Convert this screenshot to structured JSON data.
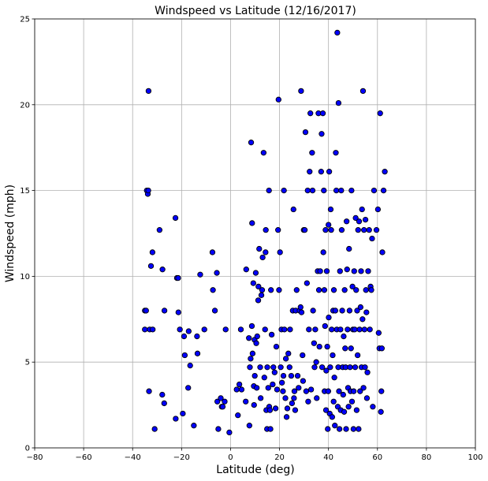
{
  "chart_data": {
    "type": "scatter",
    "title": "Windspeed vs Latitude (12/16/2017)",
    "xlabel": "Latitude (deg)",
    "ylabel": "Windspeed (mph)",
    "xlim": [
      -80,
      100
    ],
    "ylim": [
      0,
      25
    ],
    "xticks": [
      -80,
      -60,
      -40,
      -20,
      0,
      20,
      40,
      60,
      80,
      100
    ],
    "yticks": [
      0,
      5,
      10,
      15,
      20,
      25
    ],
    "xtick_labels": [
      "−80",
      "−60",
      "−40",
      "−20",
      "0",
      "20",
      "40",
      "60",
      "80",
      "100"
    ],
    "ytick_labels": [
      "0",
      "5",
      "10",
      "15",
      "20",
      "25"
    ],
    "grid": true,
    "marker_color": "#0000ff",
    "marker_edge_color": "#000000",
    "points": [
      [
        -33.5,
        20.8
      ],
      [
        -34.2,
        15.0
      ],
      [
        -33.8,
        14.8
      ],
      [
        -33.6,
        15.0
      ],
      [
        -35,
        8.0
      ],
      [
        -34.5,
        8.0
      ],
      [
        -35,
        6.9
      ],
      [
        -33,
        6.9
      ],
      [
        -31.8,
        6.9
      ],
      [
        -32.5,
        10.6
      ],
      [
        -31.9,
        11.4
      ],
      [
        -29,
        12.7
      ],
      [
        -27.8,
        10.4
      ],
      [
        -27,
        8.0
      ],
      [
        -33.3,
        3.3
      ],
      [
        -31,
        1.1
      ],
      [
        -27.9,
        3.1
      ],
      [
        -27.1,
        2.6
      ],
      [
        -22.5,
        13.4
      ],
      [
        -21.9,
        9.9
      ],
      [
        -21.4,
        9.9
      ],
      [
        -21.3,
        7.9
      ],
      [
        -20.7,
        6.9
      ],
      [
        -18.7,
        5.4
      ],
      [
        -19,
        6.5
      ],
      [
        -17.1,
        6.8
      ],
      [
        -17.3,
        3.5
      ],
      [
        -16.5,
        4.8
      ],
      [
        -19.5,
        2.0
      ],
      [
        -22.4,
        1.7
      ],
      [
        -15,
        1.3
      ],
      [
        -13.7,
        6.5
      ],
      [
        -13.5,
        5.5
      ],
      [
        -12.4,
        10.1
      ],
      [
        -10.7,
        6.9
      ],
      [
        -7.4,
        11.4
      ],
      [
        -7.2,
        9.2
      ],
      [
        -6.4,
        8.0
      ],
      [
        -5.6,
        10.2
      ],
      [
        -5.4,
        2.7
      ],
      [
        -5,
        1.1
      ],
      [
        -4,
        2.9
      ],
      [
        -3.6,
        2.4
      ],
      [
        -3.2,
        2.4
      ],
      [
        -2.4,
        2.7
      ],
      [
        -2,
        6.9
      ],
      [
        -0.5,
        0.9
      ],
      [
        2.5,
        3.4
      ],
      [
        3,
        1.9
      ],
      [
        3.6,
        3.7
      ],
      [
        4.5,
        3.4
      ],
      [
        4.2,
        6.9
      ],
      [
        6.4,
        10.4
      ],
      [
        6.2,
        2.7
      ],
      [
        7.5,
        6.4
      ],
      [
        7.7,
        1.3
      ],
      [
        7.9,
        4.7
      ],
      [
        8.2,
        5.2
      ],
      [
        8.4,
        17.8
      ],
      [
        8.8,
        13.1
      ],
      [
        8.7,
        7.1
      ],
      [
        9.0,
        5.5
      ],
      [
        9.3,
        9.6
      ],
      [
        9.5,
        3.6
      ],
      [
        9.6,
        2.5
      ],
      [
        9.8,
        6.3
      ],
      [
        9.9,
        4.2
      ],
      [
        10.3,
        10.2
      ],
      [
        10.5,
        6.1
      ],
      [
        10.7,
        3.5
      ],
      [
        10.9,
        6.5
      ],
      [
        11.3,
        8.6
      ],
      [
        11.4,
        9.4
      ],
      [
        11.7,
        11.6
      ],
      [
        12.1,
        4.7
      ],
      [
        12.3,
        2.9
      ],
      [
        12.6,
        8.9
      ],
      [
        12.9,
        9.2
      ],
      [
        13.1,
        11.1
      ],
      [
        13.5,
        17.2
      ],
      [
        13.8,
        4.1
      ],
      [
        14.1,
        6.9
      ],
      [
        14.3,
        11.4
      ],
      [
        14.4,
        12.7
      ],
      [
        14.6,
        2.2
      ],
      [
        14.9,
        1.1
      ],
      [
        15.0,
        4.7
      ],
      [
        15.4,
        3.5
      ],
      [
        15.7,
        15.0
      ],
      [
        15.8,
        2.4
      ],
      [
        16.1,
        2.2
      ],
      [
        16.3,
        1.1
      ],
      [
        16.5,
        9.2
      ],
      [
        16.8,
        6.6
      ],
      [
        17.2,
        3.7
      ],
      [
        17.5,
        4.7
      ],
      [
        18.0,
        4.4
      ],
      [
        18.4,
        2.3
      ],
      [
        18.7,
        5.9
      ],
      [
        19.0,
        3.4
      ],
      [
        19.4,
        12.7
      ],
      [
        19.6,
        20.3
      ],
      [
        19.8,
        9.2
      ],
      [
        20.2,
        11.4
      ],
      [
        20.5,
        4.7
      ],
      [
        20.8,
        6.9
      ],
      [
        21.0,
        3.8
      ],
      [
        21.4,
        3.3
      ],
      [
        21.6,
        4.2
      ],
      [
        21.8,
        15.0
      ],
      [
        22.0,
        6.9
      ],
      [
        22.4,
        2.9
      ],
      [
        22.6,
        5.2
      ],
      [
        22.9,
        1.8
      ],
      [
        23.2,
        2.3
      ],
      [
        23.6,
        5.5
      ],
      [
        24.1,
        4.7
      ],
      [
        24.3,
        6.9
      ],
      [
        24.8,
        4.2
      ],
      [
        25.1,
        2.6
      ],
      [
        25.4,
        8.0
      ],
      [
        25.7,
        13.9
      ],
      [
        25.9,
        2.9
      ],
      [
        26.1,
        3.3
      ],
      [
        26.4,
        2.2
      ],
      [
        26.6,
        8.0
      ],
      [
        27.0,
        9.2
      ],
      [
        27.4,
        4.2
      ],
      [
        27.8,
        3.5
      ],
      [
        28.2,
        8.0
      ],
      [
        28.6,
        8.2
      ],
      [
        28.8,
        20.8
      ],
      [
        29.0,
        7.9
      ],
      [
        29.4,
        5.4
      ],
      [
        29.6,
        3.9
      ],
      [
        29.9,
        12.7
      ],
      [
        30.3,
        12.7
      ],
      [
        30.6,
        18.4
      ],
      [
        30.9,
        3.3
      ],
      [
        31.2,
        9.6
      ],
      [
        31.5,
        15.0
      ],
      [
        31.7,
        2.7
      ],
      [
        32.0,
        6.9
      ],
      [
        32.3,
        16.1
      ],
      [
        32.6,
        19.5
      ],
      [
        32.9,
        3.4
      ],
      [
        33.3,
        17.2
      ],
      [
        33.5,
        15.0
      ],
      [
        33.7,
        8.0
      ],
      [
        34.1,
        6.1
      ],
      [
        34.3,
        4.7
      ],
      [
        34.6,
        6.9
      ],
      [
        35.0,
        5.0
      ],
      [
        35.2,
        2.9
      ],
      [
        35.6,
        10.3
      ],
      [
        35.9,
        19.5
      ],
      [
        36.1,
        9.2
      ],
      [
        36.3,
        5.9
      ],
      [
        36.6,
        10.3
      ],
      [
        37.0,
        16.1
      ],
      [
        37.2,
        18.3
      ],
      [
        37.4,
        4.7
      ],
      [
        37.7,
        19.5
      ],
      [
        37.9,
        11.4
      ],
      [
        38.1,
        15.0
      ],
      [
        38.3,
        9.2
      ],
      [
        38.4,
        3.3
      ],
      [
        38.6,
        7.1
      ],
      [
        38.8,
        12.7
      ],
      [
        39.0,
        2.2
      ],
      [
        39.1,
        4.5
      ],
      [
        39.3,
        10.3
      ],
      [
        39.5,
        5.9
      ],
      [
        39.7,
        1.1
      ],
      [
        39.9,
        3.3
      ],
      [
        40.0,
        13.0
      ],
      [
        40.1,
        7.6
      ],
      [
        40.3,
        16.1
      ],
      [
        40.5,
        2.0
      ],
      [
        40.7,
        4.7
      ],
      [
        40.9,
        13.9
      ],
      [
        41.1,
        12.7
      ],
      [
        41.3,
        6.9
      ],
      [
        41.5,
        1.8
      ],
      [
        41.7,
        5.4
      ],
      [
        41.9,
        8.0
      ],
      [
        42.1,
        2.7
      ],
      [
        42.2,
        9.2
      ],
      [
        42.4,
        4.1
      ],
      [
        42.6,
        1.3
      ],
      [
        42.8,
        8.0
      ],
      [
        43.0,
        17.2
      ],
      [
        43.2,
        15.0
      ],
      [
        43.4,
        6.9
      ],
      [
        43.6,
        24.2
      ],
      [
        43.8,
        2.4
      ],
      [
        44.0,
        4.7
      ],
      [
        44.1,
        20.1
      ],
      [
        44.3,
        3.3
      ],
      [
        44.5,
        1.1
      ],
      [
        44.7,
        10.3
      ],
      [
        44.9,
        6.9
      ],
      [
        45.0,
        2.2
      ],
      [
        45.2,
        15.0
      ],
      [
        45.4,
        12.7
      ],
      [
        45.6,
        8.0
      ],
      [
        45.8,
        4.7
      ],
      [
        46.0,
        3.1
      ],
      [
        46.2,
        6.5
      ],
      [
        46.4,
        2.1
      ],
      [
        46.6,
        9.2
      ],
      [
        46.8,
        5.8
      ],
      [
        47.0,
        4.7
      ],
      [
        47.2,
        1.1
      ],
      [
        47.4,
        13.2
      ],
      [
        47.6,
        10.4
      ],
      [
        47.8,
        6.9
      ],
      [
        48.0,
        3.5
      ],
      [
        48.2,
        2.4
      ],
      [
        48.4,
        11.6
      ],
      [
        48.6,
        8.0
      ],
      [
        48.8,
        4.7
      ],
      [
        49.0,
        3.3
      ],
      [
        49.2,
        5.8
      ],
      [
        49.4,
        15.0
      ],
      [
        49.6,
        2.7
      ],
      [
        49.8,
        9.4
      ],
      [
        50.0,
        6.9
      ],
      [
        50.2,
        1.1
      ],
      [
        50.3,
        3.3
      ],
      [
        50.5,
        10.3
      ],
      [
        50.7,
        6.9
      ],
      [
        50.9,
        4.7
      ],
      [
        51.1,
        13.4
      ],
      [
        51.3,
        9.2
      ],
      [
        51.5,
        2.2
      ],
      [
        51.7,
        8.0
      ],
      [
        51.9,
        5.4
      ],
      [
        52.1,
        12.7
      ],
      [
        52.3,
        1.1
      ],
      [
        52.5,
        13.2
      ],
      [
        52.7,
        6.9
      ],
      [
        52.9,
        3.3
      ],
      [
        53.1,
        8.2
      ],
      [
        53.3,
        10.3
      ],
      [
        53.5,
        4.7
      ],
      [
        53.7,
        13.9
      ],
      [
        53.9,
        7.5
      ],
      [
        54.1,
        20.8
      ],
      [
        54.3,
        3.5
      ],
      [
        54.5,
        12.7
      ],
      [
        54.7,
        6.9
      ],
      [
        54.9,
        4.7
      ],
      [
        55.1,
        13.3
      ],
      [
        55.3,
        9.2
      ],
      [
        55.5,
        7.9
      ],
      [
        55.7,
        2.9
      ],
      [
        55.9,
        4.4
      ],
      [
        56.2,
        10.3
      ],
      [
        56.6,
        12.7
      ],
      [
        56.9,
        6.9
      ],
      [
        57.2,
        9.4
      ],
      [
        57.5,
        9.2
      ],
      [
        57.8,
        12.2
      ],
      [
        58.1,
        2.4
      ],
      [
        58.6,
        15.0
      ],
      [
        59.6,
        12.7
      ],
      [
        60.2,
        13.9
      ],
      [
        60.5,
        6.7
      ],
      [
        60.8,
        5.8
      ],
      [
        61.1,
        19.5
      ],
      [
        61.4,
        2.1
      ],
      [
        61.6,
        3.3
      ],
      [
        61.8,
        5.8
      ],
      [
        62.0,
        11.4
      ],
      [
        62.5,
        15.0
      ],
      [
        63.0,
        16.1
      ]
    ]
  }
}
